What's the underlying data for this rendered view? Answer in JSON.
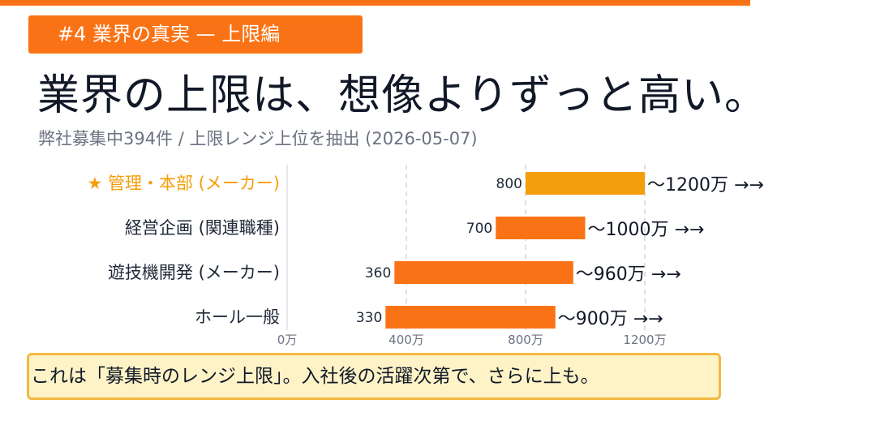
{
  "tag": "#4  業界の真実 — 上限編",
  "headline": "業界の上限は、想像よりずっと高い。",
  "subtitle": "弊社募集中394件 / 上限レンジ上位を抽出 (2026-05-07)",
  "note": "これは「募集時のレンジ上限」。入社後の活躍次第で、さらに上も。",
  "colors": {
    "accent": "#f97316",
    "highlight": "#f59e0b",
    "text": "#111827",
    "muted": "#6b7280",
    "note_bg": "#fef3c7",
    "note_border": "#f4b942"
  },
  "chart_data": {
    "type": "bar",
    "orientation": "horizontal-range",
    "categories": [
      "★ 管理・本部 (メーカー)",
      "経営企画 (関連職種)",
      "遊技機開発 (メーカー)",
      "ホール一般"
    ],
    "highlighted": [
      true,
      false,
      false,
      false
    ],
    "ranges": [
      {
        "low": 800,
        "high": 1200,
        "low_label": "800",
        "high_label": "〜1200万 →→"
      },
      {
        "low": 700,
        "high": 1000,
        "low_label": "700",
        "high_label": "〜1000万 →→"
      },
      {
        "low": 360,
        "high": 960,
        "low_label": "360",
        "high_label": "〜960万 →→"
      },
      {
        "low": 330,
        "high": 900,
        "low_label": "330",
        "high_label": "〜900万 →→"
      }
    ],
    "xticks": [
      {
        "value": 0,
        "label": "0万"
      },
      {
        "value": 400,
        "label": "400万"
      },
      {
        "value": 800,
        "label": "800万"
      },
      {
        "value": 1200,
        "label": "1200万"
      }
    ],
    "xlim": [
      0,
      1200
    ],
    "grid": true
  }
}
